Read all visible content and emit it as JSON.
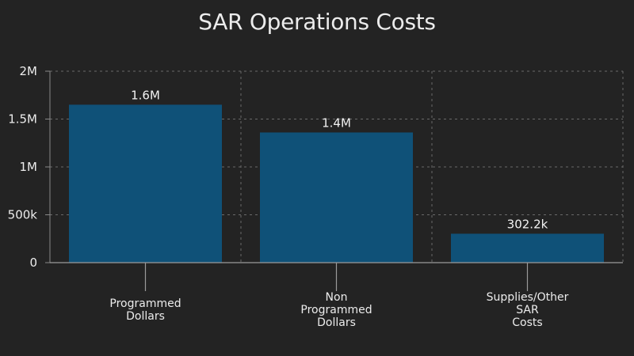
{
  "chart_data": {
    "type": "bar",
    "title": "SAR Operations Costs",
    "xlabel": "",
    "ylabel": "",
    "ylim": [
      0,
      2000000
    ],
    "yticks": [
      {
        "value": 0,
        "label": "0"
      },
      {
        "value": 500000,
        "label": "500k"
      },
      {
        "value": 1000000,
        "label": "1M"
      },
      {
        "value": 1500000,
        "label": "1.5M"
      },
      {
        "value": 2000000,
        "label": "2M"
      }
    ],
    "categories": [
      [
        "Programmed",
        "Dollars"
      ],
      [
        "Non",
        "Programmed",
        "Dollars"
      ],
      [
        "Supplies/Other",
        "SAR",
        "Costs"
      ]
    ],
    "values": [
      1650000,
      1360000,
      302200
    ],
    "data_labels": [
      "1.6M",
      "1.4M",
      "302.2k"
    ],
    "grid": true,
    "bar_color": "#0f5178"
  }
}
